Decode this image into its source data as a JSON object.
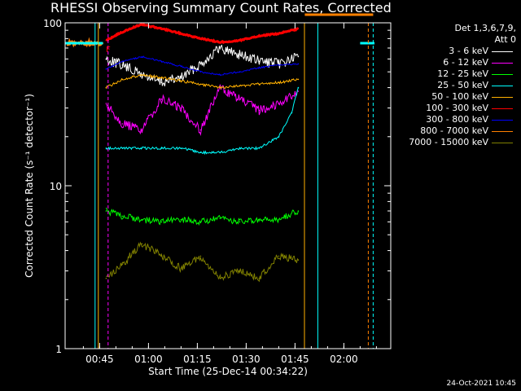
{
  "title": "RHESSI Observing Summary Count Rates, Corrected",
  "footer_date": "24-Oct-2021 10:45",
  "legend": {
    "header_line1": "Det 1,3,6,7,9,",
    "header_line2": "Att 0"
  },
  "chart_data": {
    "type": "line",
    "title": "RHESSI Observing Summary Count Rates, Corrected",
    "xlabel": "Start Time (25-Dec-14 00:34:22)",
    "ylabel": "Corrected Count Rate (s⁻¹ detector⁻¹)",
    "y_scale": "log",
    "ylim": [
      1,
      100
    ],
    "xlim_minutes": [
      34.4,
      134.4
    ],
    "x_tick_minutes": [
      45,
      60,
      75,
      90,
      105,
      120
    ],
    "x_tick_labels": [
      "00:45",
      "01:00",
      "01:15",
      "01:30",
      "01:45",
      "02:00"
    ],
    "y_tick_values": [
      1,
      10,
      100
    ],
    "y_tick_labels": [
      "1",
      "10",
      "100"
    ],
    "grid": false,
    "legend_position": "right",
    "flag_marker": "F",
    "series": [
      {
        "name": "3 - 6 keV",
        "color": "#ffffff",
        "x": [
          47,
          52,
          58,
          64,
          70,
          76,
          82,
          88,
          94,
          100,
          106
        ],
        "y": [
          60,
          55,
          48,
          43,
          46,
          56,
          70,
          64,
          58,
          56,
          62
        ]
      },
      {
        "name": "6 - 12 keV",
        "color": "#ff00ff",
        "x": [
          47,
          52,
          58,
          64,
          70,
          76,
          82,
          88,
          94,
          100,
          106
        ],
        "y": [
          32,
          24,
          22,
          34,
          30,
          22,
          40,
          34,
          29,
          32,
          38
        ]
      },
      {
        "name": "12 - 25 keV",
        "color": "#00ff00",
        "x": [
          47,
          52,
          58,
          64,
          70,
          76,
          82,
          88,
          94,
          100,
          106
        ],
        "y": [
          7.0,
          6.5,
          6.2,
          6.0,
          6.2,
          6.0,
          6.3,
          6.0,
          6.1,
          6.2,
          7.0
        ]
      },
      {
        "name": "25 - 50 keV",
        "color": "#00ffff",
        "x": [
          47,
          52,
          58,
          64,
          70,
          76,
          82,
          88,
          94,
          100,
          104,
          106
        ],
        "y": [
          17,
          17,
          17,
          17,
          17,
          16,
          16,
          17,
          17,
          20,
          28,
          40
        ]
      },
      {
        "name": "50 - 100 keV",
        "color": "#ffb000",
        "x": [
          47,
          52,
          58,
          64,
          70,
          76,
          82,
          88,
          94,
          100,
          106
        ],
        "y": [
          40,
          45,
          48,
          46,
          44,
          42,
          40,
          41,
          42,
          43,
          45
        ]
      },
      {
        "name": "100 - 300 keV",
        "color": "#ff0000",
        "x": [
          47,
          52,
          58,
          64,
          70,
          76,
          82,
          88,
          94,
          100,
          106
        ],
        "y": [
          78,
          88,
          98,
          92,
          86,
          80,
          76,
          78,
          83,
          86,
          92
        ]
      },
      {
        "name": "300 - 800 keV",
        "color": "#0000ff",
        "x": [
          47,
          52,
          58,
          64,
          70,
          76,
          82,
          88,
          94,
          100,
          106
        ],
        "y": [
          52,
          58,
          62,
          58,
          54,
          50,
          48,
          50,
          53,
          55,
          56
        ]
      },
      {
        "name": "800 - 7000 keV",
        "color": "#ff8000",
        "x": [
          35,
          40,
          46
        ],
        "y": [
          75,
          75,
          75
        ]
      },
      {
        "name": "7000 - 15000 keV",
        "color": "#808000",
        "x": [
          47,
          52,
          58,
          64,
          70,
          76,
          82,
          88,
          94,
          100,
          106
        ],
        "y": [
          2.7,
          3.3,
          4.4,
          3.7,
          3.1,
          3.7,
          2.7,
          3.0,
          2.7,
          3.7,
          3.5
        ]
      }
    ]
  }
}
